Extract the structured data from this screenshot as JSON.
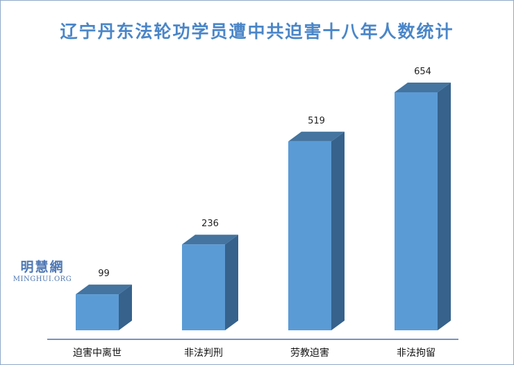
{
  "title": "辽宁丹东法轮功学员遭中共迫害十八年人数统计",
  "watermark": {
    "name": "明慧網",
    "site": "MINGHUI.ORG"
  },
  "colors": {
    "bar_front": "#5b9bd5",
    "bar_side": "#36628c",
    "bar_top": "#44749f",
    "title": "#4a86c8",
    "axis": "#4a6ea9"
  },
  "chart_data": {
    "type": "bar",
    "title": "辽宁丹东法轮功学员遭中共迫害十八年人数统计",
    "xlabel": "",
    "ylabel": "",
    "categories": [
      "迫害中离世",
      "非法判刑",
      "劳教迫害",
      "非法拘留"
    ],
    "values": [
      99,
      236,
      519,
      654
    ],
    "ylim": [
      0,
      654
    ],
    "grid": false,
    "legend": "none",
    "data_labels": true,
    "style": "3d"
  }
}
